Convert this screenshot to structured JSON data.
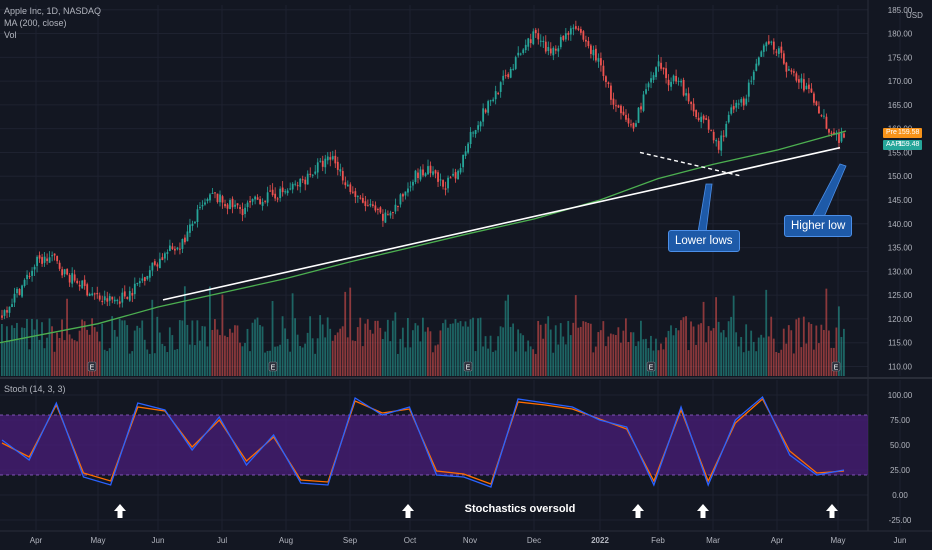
{
  "header": {
    "symbol_line": "Apple Inc, 1D, NASDAQ",
    "ma_line": "MA (200, close)",
    "vol_line": "Vol",
    "stoch_line": "Stoch (14, 3, 3)",
    "currency": "USD"
  },
  "price_tags": {
    "pre_label": "Pre",
    "pre_value": "159.58",
    "aapl_label": "AAPL",
    "aapl_value": "159.48"
  },
  "annotations": {
    "lower_lows": "Lower lows",
    "higher_low": "Higher low",
    "stoch_oversold": "Stochastics oversold"
  },
  "earnings_marker": "E",
  "colors": {
    "background": "#131722",
    "up": "#26a69a",
    "down": "#ef5350",
    "ma": "#4caf50",
    "trendline": "#ffffff",
    "stoch_k": "#2962ff",
    "stoch_d": "#ff6d00",
    "stoch_band": "#4a1d7a",
    "callout": "#1e5aa8",
    "pre_tag": "#f7931a",
    "aapl_tag": "#26a69a"
  },
  "chart_data": [
    {
      "type": "line",
      "title": "Apple Inc, 1D, NASDAQ",
      "note": "candlestick daily price with MA (200, close) and Vol",
      "x_ticks": [
        "Apr",
        "May",
        "Jun",
        "Jul",
        "Aug",
        "Sep",
        "Oct",
        "Nov",
        "Dec",
        "2022",
        "Feb",
        "Mar",
        "Apr",
        "May",
        "Jun"
      ],
      "y_ticks": [
        110,
        115,
        120,
        125,
        130,
        135,
        140,
        145,
        150,
        155,
        160,
        165,
        170,
        175,
        180,
        185
      ],
      "ylim": [
        108,
        186
      ],
      "grid": true,
      "series": [
        {
          "name": "AAPL",
          "x": [
            "Apr",
            "May",
            "Jun",
            "Jul",
            "Aug",
            "Sep",
            "Oct",
            "Nov",
            "Dec",
            "2022",
            "Feb",
            "Mar",
            "Apr",
            "May"
          ],
          "values": [
            121,
            131,
            125,
            134,
            146,
            151,
            143,
            149,
            165,
            179,
            172,
            164,
            174,
            159.48
          ]
        },
        {
          "name": "MA (200, close)",
          "x": [
            "Apr",
            "May",
            "Jun",
            "Jul",
            "Aug",
            "Sep",
            "Oct",
            "Nov",
            "Dec",
            "2022",
            "Feb",
            "Mar",
            "Apr",
            "May"
          ],
          "values": [
            115,
            119,
            122.5,
            125.5,
            128.5,
            132,
            135,
            138,
            141,
            145,
            149.5,
            152.5,
            155.5,
            159.5
          ]
        }
      ],
      "price_tags": [
        {
          "label": "Pre",
          "value": 159.58
        },
        {
          "label": "AAPL",
          "value": 159.48
        }
      ],
      "annotations": [
        "Lower lows",
        "Higher low"
      ]
    },
    {
      "type": "line",
      "title": "Stoch (14, 3, 3)",
      "y_ticks": [
        -25,
        0,
        25,
        50,
        75,
        100
      ],
      "ylim": [
        -35,
        115
      ],
      "band": [
        20,
        80
      ],
      "series": [
        {
          "name": "%K",
          "values": [
            55,
            35,
            92,
            18,
            10,
            92,
            85,
            45,
            78,
            30,
            60,
            12,
            10,
            97,
            80,
            88,
            20,
            18,
            8,
            96,
            92,
            88,
            75,
            68,
            10,
            88,
            10,
            75,
            98,
            40,
            20,
            25
          ]
        },
        {
          "name": "%D",
          "values": [
            52,
            38,
            90,
            22,
            14,
            88,
            84,
            48,
            75,
            34,
            58,
            15,
            13,
            94,
            82,
            86,
            24,
            21,
            11,
            93,
            90,
            86,
            76,
            66,
            14,
            85,
            14,
            72,
            96,
            44,
            22,
            24
          ]
        }
      ],
      "annotations": [
        "Stochastics oversold"
      ]
    }
  ]
}
